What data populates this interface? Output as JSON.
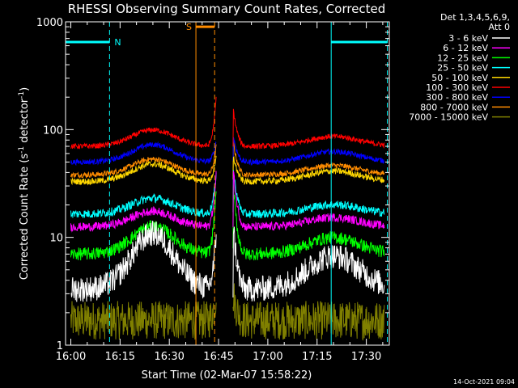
{
  "chart_data": {
    "type": "line",
    "title": "RHESSI Observing Summary Count Rates, Corrected",
    "xlabel": "Start Time (02-Mar-07 15:58:22)",
    "ylabel_parts": [
      "Corrected Count Rate (s",
      "-1",
      " detector",
      "-1",
      ")"
    ],
    "yscale": "log",
    "ylim": [
      1,
      1000
    ],
    "xlim_minutes_after_1600": [
      -1.6,
      97
    ],
    "x_ticks": [
      {
        "min": 0,
        "label": "16:00"
      },
      {
        "min": 15,
        "label": "16:15"
      },
      {
        "min": 30,
        "label": "16:30"
      },
      {
        "min": 45,
        "label": "16:45"
      },
      {
        "min": 60,
        "label": "17:00"
      },
      {
        "min": 75,
        "label": "17:15"
      },
      {
        "min": 90,
        "label": "17:30"
      }
    ],
    "y_ticks": [
      {
        "value": 1,
        "label": "1"
      },
      {
        "value": 10,
        "label": "10"
      },
      {
        "value": 100,
        "label": "100"
      },
      {
        "value": 1000,
        "label": "1000"
      }
    ],
    "legend_header": [
      "Det 1,3,4,5,6,9,",
      "Att 0"
    ],
    "series": [
      {
        "name": "3 - 6 keV",
        "color": "#000000",
        "level": 3.3,
        "hump": 3.3,
        "noise": 0.12,
        "pre_value": 11,
        "post_value": 14
      },
      {
        "name": "6 - 12 keV",
        "color": "#ff00ff",
        "level": 12.5,
        "hump": 1.4,
        "noise": 0.04,
        "pre_value": 40,
        "post_value": 45
      },
      {
        "name": "12 - 25 keV",
        "color": "#00ff00",
        "level": 7.0,
        "hump": 1.8,
        "noise": 0.06,
        "pre_value": 30,
        "post_value": 32
      },
      {
        "name": "25 - 50 keV",
        "color": "#00ffff",
        "level": 16.5,
        "hump": 1.4,
        "noise": 0.04,
        "pre_value": 40,
        "post_value": 45
      },
      {
        "name": "50 - 100 keV",
        "color": "#ffd700",
        "level": 33,
        "hump": 1.45,
        "noise": 0.03,
        "pre_value": 55,
        "post_value": 60
      },
      {
        "name": "100 - 300 keV",
        "color": "#ff0000",
        "level": 70,
        "hump": 1.42,
        "noise": 0.025,
        "pre_value": 200,
        "post_value": 160
      },
      {
        "name": "300 - 800 keV",
        "color": "#0000ff",
        "level": 50,
        "hump": 1.45,
        "noise": 0.025,
        "pre_value": 80,
        "post_value": 90
      },
      {
        "name": "800 - 7000 keV",
        "color": "#ff8c00",
        "level": 38,
        "hump": 1.4,
        "noise": 0.025,
        "pre_value": 70,
        "post_value": 80
      },
      {
        "name": "7000 - 15000 keV",
        "color": "#808000",
        "level": 1.7,
        "hump": 1.0,
        "noise": 0.18,
        "pre_value": 3,
        "post_value": 3
      }
    ],
    "data_gap_minutes": [
      44.3,
      49.4
    ],
    "annotations": [
      {
        "type": "night",
        "label": "N",
        "color": "#00ffff",
        "intervals": [
          [
            -1.6,
            11.8
          ],
          [
            79.3,
            96.4
          ]
        ]
      },
      {
        "type": "saa",
        "label": "S",
        "color": "#ff8c00",
        "intervals": [
          [
            38.1,
            43.8
          ]
        ]
      }
    ]
  },
  "footer": {
    "timestamp": "14-Oct-2021 09:04"
  }
}
